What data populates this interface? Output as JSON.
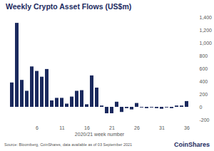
{
  "chart_data": {
    "type": "bar",
    "title": "Weekly Crypto Asset Flows (US$m)",
    "x_label": "2020/21 week number",
    "source": "Source: Bloomberg, CoinShares, data available as of 03 September 2021",
    "brand": "CoinShares",
    "categories": [
      null,
      null,
      null,
      null,
      null,
      "6",
      null,
      null,
      null,
      null,
      "11",
      null,
      null,
      null,
      null,
      "16",
      null,
      null,
      null,
      null,
      "21",
      null,
      null,
      null,
      null,
      "26",
      null,
      null,
      null,
      null,
      "31",
      null,
      null,
      null,
      null,
      "36"
    ],
    "values": [
      380,
      1310,
      420,
      250,
      630,
      560,
      470,
      590,
      100,
      140,
      140,
      50,
      160,
      250,
      260,
      40,
      490,
      300,
      20,
      -100,
      -100,
      80,
      -80,
      -20,
      -40,
      60,
      -10,
      -20,
      -10,
      -20,
      -30,
      -10,
      -20,
      20,
      20,
      90
    ],
    "color": "#1b2a5e",
    "ylim": [
      -200,
      1400
    ],
    "yticks": [
      -200,
      0,
      200,
      400,
      600,
      800,
      {
        "value": 1000,
        "label": "1,000"
      },
      {
        "value": 1200,
        "label": "1,200"
      },
      {
        "value": 1400,
        "label": "1,400"
      }
    ],
    "grid": false
  }
}
